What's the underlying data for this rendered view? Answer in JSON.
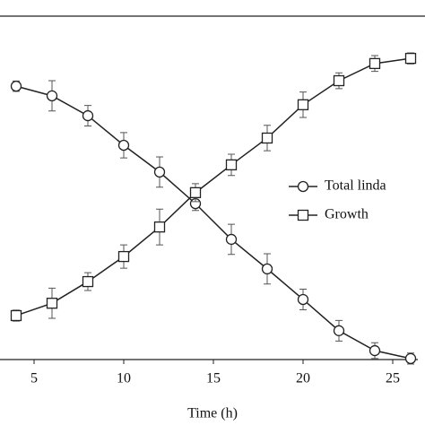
{
  "chart_data": {
    "type": "line",
    "xlabel": "Time (h)",
    "x": [
      4,
      6,
      8,
      10,
      12,
      14,
      16,
      18,
      20,
      22,
      24,
      26
    ],
    "series": [
      {
        "name": "Total linda",
        "marker": "circle",
        "color": "#222",
        "values": [
          79.6,
          76.8,
          71,
          62.4,
          54.6,
          45.4,
          35,
          26.4,
          17.5,
          8.4,
          2.6,
          0.3
        ],
        "errors": [
          1.5,
          4.4,
          3,
          3.7,
          4.4,
          2,
          4.4,
          4.4,
          3,
          3,
          2.3,
          1.6
        ]
      },
      {
        "name": "Growth",
        "marker": "square",
        "color": "#222",
        "values": [
          12.8,
          16.4,
          22.7,
          30,
          38.6,
          48.6,
          56.7,
          64.5,
          74.2,
          81.2,
          86.2,
          87.7
        ],
        "errors": [
          1.6,
          4.4,
          2.6,
          3.4,
          5.2,
          2.6,
          3.1,
          3.7,
          3.7,
          2.3,
          2.3,
          1.6
        ]
      }
    ],
    "xlim": [
      3.1,
      26.4
    ],
    "xticks": [
      5,
      10,
      15,
      20,
      25
    ],
    "ylim": [
      0,
      100
    ]
  }
}
